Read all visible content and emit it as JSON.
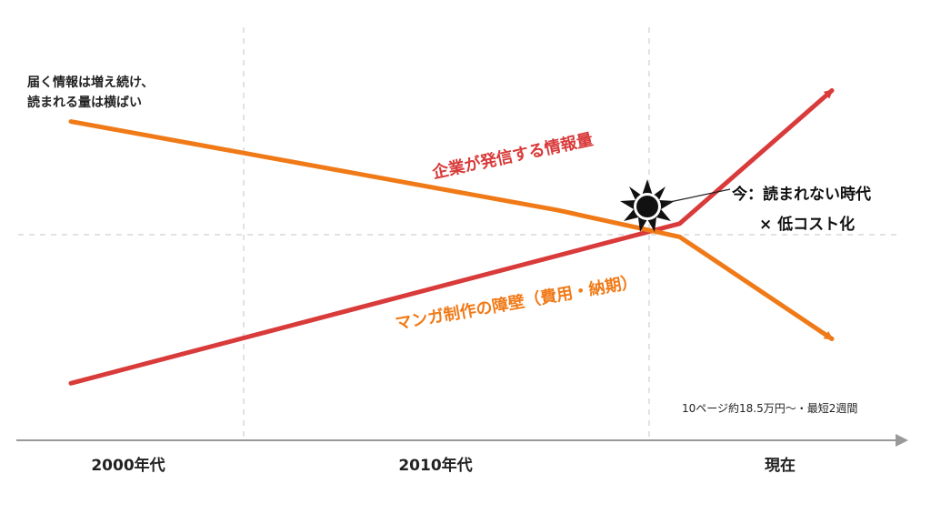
{
  "chart_data": {
    "type": "line",
    "x_categories": [
      "2000年代",
      "2010年代",
      "現在"
    ],
    "grid": "dashed",
    "series": [
      {
        "name": "企業が発信する情報量",
        "color": "#d93a3a",
        "points": [
          [
            0,
            1.0
          ],
          [
            2.0,
            4.6
          ],
          [
            2.5,
            7.6
          ]
        ]
      },
      {
        "name": "マンガ制作の障壁（費用・納期）",
        "color": "#f07a17",
        "points": [
          [
            0,
            6.9
          ],
          [
            1.6,
            4.9
          ],
          [
            2.0,
            4.3
          ],
          [
            2.5,
            2.0
          ]
        ]
      }
    ],
    "annotations": {
      "top_left_line1": "届く情報は増え続け、",
      "top_left_line2": "読まれる量は横ばい",
      "now_line1": "今：読まれない時代",
      "now_line2": "× 低コスト化",
      "cost_note": "10ページ約18.5万円〜・最短2週間"
    }
  }
}
